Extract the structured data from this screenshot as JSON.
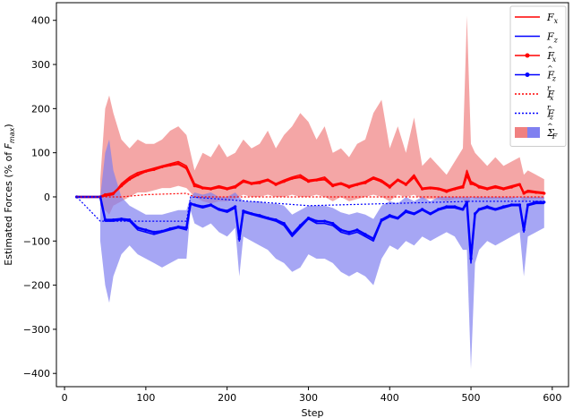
{
  "chart_data": {
    "type": "line",
    "title": "",
    "xlabel": "Step",
    "ylabel": "Estimated Forces (% of F_max)",
    "ylabel_parts": {
      "prefix": "Estimated Forces (% of ",
      "symbol": "F",
      "sub": "max",
      "suffix": ")"
    },
    "xlim": [
      -10,
      620
    ],
    "ylim": [
      -430,
      440
    ],
    "xticks": [
      0,
      100,
      200,
      300,
      400,
      500,
      600
    ],
    "yticks": [
      -400,
      -300,
      -200,
      -100,
      0,
      100,
      200,
      300,
      400
    ],
    "grid": false,
    "legend_position": "top-right",
    "colors": {
      "red": "#ff0000",
      "blue": "#0000ff",
      "red_band": "#f08080",
      "blue_band": "#8080f0"
    },
    "series": [
      {
        "name": "Fx",
        "label": {
          "base": "F",
          "sub": "x",
          "sup": ""
        },
        "style": "solid",
        "color": "#ff0000",
        "x": [
          15,
          44,
          50,
          60,
          70,
          80,
          90,
          100,
          110,
          120,
          130,
          140,
          150,
          160,
          170,
          180,
          190,
          200,
          210,
          220,
          230,
          240,
          250,
          260,
          270,
          280,
          290,
          300,
          310,
          320,
          330,
          340,
          350,
          360,
          370,
          380,
          390,
          400,
          410,
          420,
          430,
          440,
          450,
          460,
          470,
          480,
          490,
          495,
          500,
          505,
          510,
          520,
          530,
          540,
          550,
          560,
          565,
          570,
          580,
          590
        ],
        "y": [
          0,
          0,
          2,
          5,
          30,
          45,
          55,
          60,
          65,
          70,
          75,
          80,
          70,
          30,
          22,
          20,
          25,
          20,
          25,
          38,
          32,
          35,
          40,
          30,
          38,
          45,
          50,
          38,
          40,
          45,
          28,
          32,
          25,
          30,
          35,
          45,
          38,
          25,
          40,
          30,
          50,
          20,
          22,
          20,
          15,
          20,
          25,
          60,
          35,
          30,
          25,
          20,
          25,
          20,
          25,
          30,
          10,
          15,
          12,
          10
        ]
      },
      {
        "name": "Fz",
        "label": {
          "base": "F",
          "sub": "z",
          "sup": ""
        },
        "style": "solid",
        "color": "#0000ff",
        "x": [
          15,
          44,
          50,
          60,
          70,
          80,
          90,
          100,
          110,
          120,
          130,
          140,
          150,
          155,
          160,
          170,
          180,
          190,
          200,
          210,
          215,
          220,
          230,
          240,
          250,
          260,
          270,
          280,
          290,
          300,
          310,
          320,
          330,
          340,
          350,
          360,
          370,
          380,
          390,
          400,
          410,
          420,
          430,
          440,
          450,
          460,
          470,
          480,
          490,
          495,
          500,
          505,
          510,
          520,
          530,
          540,
          550,
          560,
          565,
          570,
          580,
          590
        ],
        "y": [
          0,
          0,
          -55,
          -55,
          -52,
          -55,
          -75,
          -80,
          -85,
          -80,
          -75,
          -70,
          -75,
          -15,
          -20,
          -25,
          -20,
          -30,
          -35,
          -25,
          -100,
          -35,
          -40,
          -45,
          -50,
          -55,
          -65,
          -90,
          -70,
          -50,
          -60,
          -60,
          -65,
          -80,
          -85,
          -80,
          -90,
          -100,
          -55,
          -45,
          -50,
          -35,
          -40,
          -30,
          -40,
          -30,
          -25,
          -25,
          -30,
          -15,
          -150,
          -40,
          -30,
          -25,
          -30,
          -25,
          -20,
          -20,
          -80,
          -20,
          -15,
          -15
        ]
      },
      {
        "name": "Fx hat",
        "label": {
          "base": "F",
          "sub": "x",
          "sup": "^"
        },
        "style": "marker",
        "color": "#ff0000",
        "x": [
          15,
          44,
          50,
          60,
          70,
          80,
          90,
          100,
          110,
          120,
          130,
          140,
          150,
          160,
          170,
          180,
          190,
          200,
          210,
          220,
          230,
          240,
          250,
          260,
          270,
          280,
          290,
          300,
          310,
          320,
          330,
          340,
          350,
          360,
          370,
          380,
          390,
          400,
          410,
          420,
          430,
          440,
          450,
          460,
          470,
          480,
          490,
          495,
          500,
          505,
          510,
          520,
          530,
          540,
          550,
          560,
          565,
          570,
          580,
          590
        ],
        "y": [
          0,
          0,
          5,
          8,
          25,
          40,
          50,
          58,
          62,
          68,
          72,
          75,
          65,
          25,
          20,
          18,
          22,
          18,
          22,
          35,
          30,
          32,
          38,
          28,
          35,
          42,
          45,
          35,
          38,
          40,
          25,
          30,
          22,
          28,
          32,
          42,
          35,
          22,
          38,
          28,
          45,
          18,
          20,
          18,
          12,
          18,
          22,
          50,
          30,
          28,
          22,
          18,
          22,
          18,
          22,
          28,
          8,
          12,
          10,
          8
        ]
      },
      {
        "name": "Fz hat",
        "label": {
          "base": "F",
          "sub": "z",
          "sup": "^"
        },
        "style": "marker",
        "color": "#0000ff",
        "x": [
          15,
          44,
          50,
          60,
          70,
          80,
          90,
          100,
          110,
          120,
          130,
          140,
          150,
          155,
          160,
          170,
          180,
          190,
          200,
          210,
          215,
          220,
          230,
          240,
          250,
          260,
          270,
          280,
          290,
          300,
          310,
          320,
          330,
          340,
          350,
          360,
          370,
          380,
          390,
          400,
          410,
          420,
          430,
          440,
          450,
          460,
          470,
          480,
          490,
          495,
          500,
          505,
          510,
          520,
          530,
          540,
          550,
          560,
          565,
          570,
          580,
          590
        ],
        "y": [
          0,
          0,
          -52,
          -52,
          -50,
          -52,
          -70,
          -75,
          -80,
          -78,
          -72,
          -68,
          -70,
          -15,
          -18,
          -22,
          -18,
          -28,
          -32,
          -22,
          -95,
          -32,
          -38,
          -42,
          -48,
          -52,
          -60,
          -85,
          -65,
          -48,
          -55,
          -55,
          -60,
          -75,
          -80,
          -75,
          -85,
          -95,
          -52,
          -42,
          -48,
          -32,
          -38,
          -28,
          -38,
          -28,
          -22,
          -22,
          -28,
          -12,
          -140,
          -38,
          -28,
          -22,
          -28,
          -22,
          -18,
          -18,
          -75,
          -18,
          -12,
          -12
        ]
      },
      {
        "name": "Fx r",
        "label": {
          "base": "F",
          "sub": "x",
          "sup": "r"
        },
        "style": "dotted",
        "color": "#ff0000",
        "x": [
          15,
          44,
          70,
          100,
          150,
          160,
          300,
          400,
          500,
          590
        ],
        "y": [
          0,
          0,
          0,
          5,
          8,
          0,
          0,
          0,
          0,
          0
        ]
      },
      {
        "name": "Fz r",
        "label": {
          "base": "F",
          "sub": "z",
          "sup": "r"
        },
        "style": "dotted",
        "color": "#0000ff",
        "x": [
          15,
          44,
          100,
          150,
          155,
          300,
          400,
          500,
          590
        ],
        "y": [
          0,
          -55,
          -55,
          -55,
          0,
          -20,
          -15,
          -10,
          -10
        ]
      }
    ],
    "bands": [
      {
        "series": "Fx",
        "color": "#f08080",
        "x": [
          44,
          50,
          55,
          60,
          70,
          80,
          90,
          100,
          110,
          120,
          130,
          140,
          150,
          160,
          170,
          180,
          190,
          200,
          210,
          220,
          230,
          240,
          250,
          260,
          270,
          280,
          290,
          300,
          310,
          320,
          330,
          340,
          350,
          360,
          370,
          380,
          390,
          400,
          410,
          420,
          430,
          440,
          450,
          460,
          470,
          480,
          490,
          495,
          500,
          505,
          510,
          520,
          530,
          540,
          550,
          560,
          565,
          570,
          580,
          590
        ],
        "upper": [
          40,
          200,
          230,
          190,
          130,
          110,
          130,
          120,
          120,
          130,
          150,
          160,
          140,
          60,
          100,
          90,
          120,
          90,
          100,
          130,
          110,
          120,
          150,
          110,
          140,
          160,
          190,
          170,
          130,
          160,
          100,
          110,
          90,
          120,
          130,
          190,
          220,
          110,
          160,
          100,
          180,
          70,
          90,
          70,
          50,
          80,
          110,
          410,
          120,
          100,
          90,
          70,
          90,
          70,
          80,
          90,
          50,
          60,
          50,
          40
        ],
        "lower": [
          -20,
          -30,
          -40,
          -20,
          -10,
          0,
          10,
          10,
          15,
          20,
          20,
          25,
          20,
          0,
          -10,
          -15,
          -10,
          -10,
          -5,
          5,
          0,
          0,
          5,
          0,
          0,
          5,
          0,
          0,
          5,
          0,
          -10,
          0,
          -10,
          -5,
          0,
          5,
          0,
          -10,
          5,
          0,
          5,
          -5,
          -5,
          -5,
          -10,
          -5,
          -5,
          -20,
          0,
          -5,
          -5,
          -5,
          -5,
          -5,
          -5,
          0,
          -10,
          -5,
          -5,
          -5
        ]
      },
      {
        "series": "Fz",
        "color": "#8080f0",
        "x": [
          44,
          50,
          55,
          60,
          70,
          80,
          90,
          100,
          110,
          120,
          130,
          140,
          150,
          155,
          160,
          170,
          180,
          190,
          200,
          210,
          215,
          220,
          230,
          240,
          250,
          260,
          270,
          280,
          290,
          300,
          310,
          320,
          330,
          340,
          350,
          360,
          370,
          380,
          390,
          400,
          410,
          420,
          430,
          440,
          450,
          460,
          470,
          480,
          490,
          495,
          500,
          505,
          510,
          520,
          530,
          540,
          550,
          560,
          565,
          570,
          580,
          590
        ],
        "upper": [
          0,
          100,
          130,
          60,
          0,
          -20,
          -30,
          -40,
          -40,
          -40,
          -35,
          -30,
          -30,
          0,
          10,
          5,
          10,
          0,
          0,
          10,
          0,
          -10,
          -10,
          -10,
          -15,
          -15,
          -20,
          -40,
          -30,
          -20,
          -20,
          -20,
          -25,
          -35,
          -40,
          -35,
          -40,
          -50,
          -20,
          -10,
          -15,
          0,
          -10,
          0,
          -10,
          0,
          0,
          0,
          0,
          0,
          0,
          0,
          0,
          0,
          0,
          0,
          0,
          0,
          0,
          0,
          0,
          0
        ],
        "lower": [
          -100,
          -200,
          -240,
          -180,
          -130,
          -110,
          -130,
          -140,
          -150,
          -160,
          -150,
          -140,
          -140,
          -30,
          -60,
          -70,
          -60,
          -80,
          -90,
          -70,
          -180,
          -90,
          -100,
          -110,
          -120,
          -140,
          -150,
          -170,
          -160,
          -130,
          -140,
          -140,
          -150,
          -170,
          -180,
          -170,
          -180,
          -200,
          -140,
          -110,
          -120,
          -100,
          -110,
          -90,
          -100,
          -90,
          -80,
          -90,
          -120,
          -120,
          -390,
          -150,
          -120,
          -100,
          -110,
          -100,
          -90,
          -80,
          -180,
          -90,
          -80,
          -70
        ]
      }
    ],
    "legend": [
      {
        "label": {
          "base": "F",
          "sub": "x",
          "sup": ""
        },
        "style": "solid",
        "color": "#ff0000"
      },
      {
        "label": {
          "base": "F",
          "sub": "z",
          "sup": ""
        },
        "style": "solid",
        "color": "#0000ff"
      },
      {
        "label": {
          "base": "F",
          "sub": "x",
          "sup": "^"
        },
        "style": "marker",
        "color": "#ff0000"
      },
      {
        "label": {
          "base": "F",
          "sub": "z",
          "sup": "^"
        },
        "style": "marker",
        "color": "#0000ff"
      },
      {
        "label": {
          "base": "F",
          "sub": "x",
          "sup": "r"
        },
        "style": "dotted",
        "color": "#ff0000"
      },
      {
        "label": {
          "base": "F",
          "sub": "z",
          "sup": "r"
        },
        "style": "dotted",
        "color": "#0000ff"
      },
      {
        "label": {
          "base": "Σ",
          "sub": "F",
          "sup": "^"
        },
        "style": "band",
        "color": "#f08080",
        "color2": "#8080f0"
      }
    ]
  }
}
